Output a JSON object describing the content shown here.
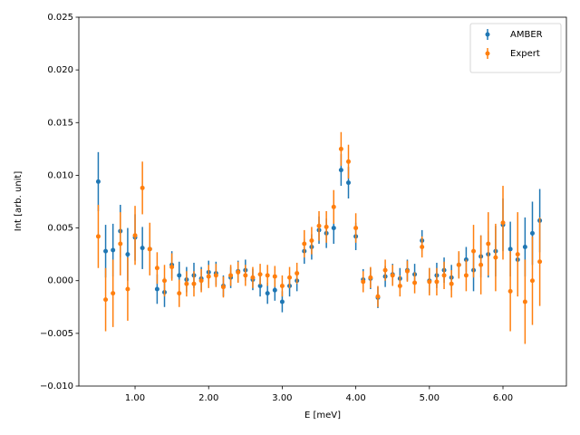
{
  "chart_data": {
    "type": "scatter",
    "x_label": "E [meV]",
    "y_label": "Int [arb. unit]",
    "xlim": [
      0.236,
      6.862
    ],
    "ylim": [
      -0.01,
      0.025
    ],
    "xticks": [
      {
        "value": 1,
        "label": "1.00"
      },
      {
        "value": 2,
        "label": "2.00"
      },
      {
        "value": 3,
        "label": "3.00"
      },
      {
        "value": 4,
        "label": "4.00"
      },
      {
        "value": 5,
        "label": "5.00"
      },
      {
        "value": 6,
        "label": "6.00"
      }
    ],
    "yticks": [
      {
        "value": -0.01,
        "label": "−0.010"
      },
      {
        "value": -0.005,
        "label": "−0.005"
      },
      {
        "value": 0,
        "label": "0.000"
      },
      {
        "value": 0.005,
        "label": "0.005"
      },
      {
        "value": 0.01,
        "label": "0.010"
      },
      {
        "value": 0.015,
        "label": "0.015"
      },
      {
        "value": 0.02,
        "label": "0.020"
      },
      {
        "value": 0.025,
        "label": "0.025"
      }
    ],
    "legend": "upper right",
    "x": [
      0.5,
      0.6,
      0.7,
      0.8,
      0.9,
      1.0,
      1.1,
      1.2,
      1.3,
      1.4,
      1.5,
      1.6,
      1.7,
      1.8,
      1.9,
      2.0,
      2.1,
      2.2,
      2.3,
      2.4,
      2.5,
      2.6,
      2.7,
      2.8,
      2.9,
      3.0,
      3.1,
      3.2,
      3.3,
      3.4,
      3.5,
      3.6,
      3.7,
      3.8,
      3.9,
      4.0,
      4.1,
      4.2,
      4.3,
      4.4,
      4.5,
      4.6,
      4.7,
      4.8,
      4.9,
      5.0,
      5.1,
      5.2,
      5.3,
      5.4,
      5.5,
      5.6,
      5.7,
      5.8,
      5.9,
      6.0,
      6.1,
      6.2,
      6.3,
      6.4,
      6.5
    ],
    "series": [
      {
        "name": "AMBER",
        "color": "#1f77b4",
        "values": [
          0.0094,
          0.0028,
          0.0029,
          0.0047,
          0.0025,
          0.0041,
          0.0031,
          0.003,
          -0.0008,
          -0.0011,
          0.0015,
          0.0005,
          0.0001,
          0.0005,
          0.0002,
          0.0008,
          0.0007,
          -0.0005,
          0.0003,
          0.0009,
          0.001,
          0.0001,
          -0.0005,
          -0.0012,
          -0.0009,
          -0.002,
          -0.0005,
          0.0,
          0.0028,
          0.0032,
          0.0048,
          0.0045,
          0.005,
          0.0105,
          0.0093,
          0.0042,
          0.0001,
          0.0002,
          -0.0016,
          0.0004,
          0.0006,
          0.0002,
          0.001,
          0.0006,
          0.0038,
          0.0,
          0.0005,
          0.001,
          0.0003,
          0.0015,
          0.002,
          0.001,
          0.0023,
          0.0025,
          0.0028,
          0.0053,
          0.003,
          0.002,
          0.0032,
          0.0045,
          0.0057
        ],
        "errors": [
          0.0028,
          0.0025,
          0.0025,
          0.0025,
          0.0025,
          0.0022,
          0.002,
          0.002,
          0.0014,
          0.0014,
          0.0013,
          0.0013,
          0.0012,
          0.0012,
          0.0011,
          0.0011,
          0.0011,
          0.001,
          0.001,
          0.001,
          0.001,
          0.001,
          0.001,
          0.001,
          0.001,
          0.001,
          0.001,
          0.001,
          0.0012,
          0.0012,
          0.0013,
          0.0014,
          0.0015,
          0.0015,
          0.0015,
          0.0013,
          0.001,
          0.001,
          0.001,
          0.001,
          0.001,
          0.001,
          0.001,
          0.001,
          0.001,
          0.0012,
          0.0012,
          0.0012,
          0.0012,
          0.0012,
          0.0012,
          0.002,
          0.002,
          0.0022,
          0.0024,
          0.0025,
          0.0026,
          0.0027,
          0.0028,
          0.003,
          0.003
        ]
      },
      {
        "name": "Expert",
        "color": "#ff7f0e",
        "values": [
          0.0042,
          -0.0018,
          -0.0012,
          0.0035,
          -0.0008,
          0.0043,
          0.0088,
          0.003,
          0.0012,
          0.0,
          0.0013,
          -0.0012,
          -0.0003,
          -0.0003,
          0.0,
          0.0004,
          0.0005,
          -0.0006,
          0.0005,
          0.0008,
          0.0005,
          0.0003,
          0.0006,
          0.0005,
          0.0004,
          -0.0005,
          0.0003,
          0.0007,
          0.0035,
          0.0038,
          0.0052,
          0.0051,
          0.007,
          0.0125,
          0.0113,
          0.005,
          -0.0001,
          0.0003,
          -0.0015,
          0.001,
          0.0005,
          -0.0005,
          0.0009,
          -0.0002,
          0.0032,
          -0.0001,
          -0.0001,
          0.0005,
          -0.0003,
          0.0015,
          0.0005,
          0.0028,
          0.0015,
          0.0035,
          0.0022,
          0.0055,
          -0.001,
          0.0025,
          -0.002,
          0.0,
          0.0018
        ],
        "errors": [
          0.003,
          0.003,
          0.0032,
          0.003,
          0.003,
          0.0028,
          0.0025,
          0.0025,
          0.0015,
          0.0015,
          0.0013,
          0.0013,
          0.0012,
          0.0012,
          0.0011,
          0.0011,
          0.0011,
          0.001,
          0.001,
          0.001,
          0.001,
          0.001,
          0.001,
          0.001,
          0.001,
          0.001,
          0.001,
          0.001,
          0.0013,
          0.0013,
          0.0014,
          0.0015,
          0.0016,
          0.0016,
          0.0016,
          0.0014,
          0.001,
          0.001,
          0.001,
          0.001,
          0.001,
          0.001,
          0.001,
          0.001,
          0.001,
          0.0013,
          0.0013,
          0.0013,
          0.0013,
          0.0013,
          0.0015,
          0.0025,
          0.0028,
          0.003,
          0.0032,
          0.0035,
          0.0038,
          0.004,
          0.004,
          0.0042,
          0.0042
        ]
      }
    ]
  }
}
